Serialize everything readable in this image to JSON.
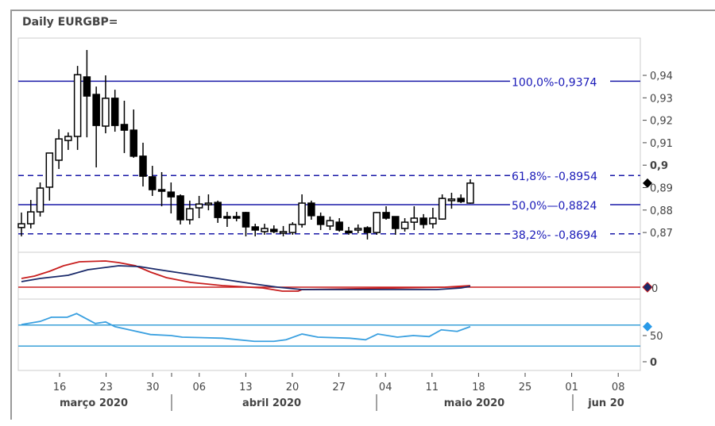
{
  "title": "Daily EURGBP=",
  "colors": {
    "fib": "#1a1aa8",
    "fib_text": "#1a1ab8",
    "candle": "#000000",
    "macd": "#c81e1e",
    "signal": "#1a2a6a",
    "rsi": "#3aa0e0",
    "rsi_bands": "#3aa0d8",
    "grid": "#cccccc"
  },
  "chart_data": [
    {
      "type": "candlestick",
      "title": "Daily EURGBP=",
      "ylim": [
        0.864,
        0.956
      ],
      "y_ticks": [
        {
          "v": 0.94,
          "label": "0,94"
        },
        {
          "v": 0.93,
          "label": "0,93"
        },
        {
          "v": 0.92,
          "label": "0,92"
        },
        {
          "v": 0.91,
          "label": "0,91"
        },
        {
          "v": 0.9,
          "label": "0,9",
          "bold": true
        },
        {
          "v": 0.89,
          "label": "0,89"
        },
        {
          "v": 0.88,
          "label": "0,88"
        },
        {
          "v": 0.87,
          "label": "0,87"
        }
      ],
      "fib_levels": [
        {
          "v": 0.9374,
          "label": "100,0%-0,9374",
          "style": "solid"
        },
        {
          "v": 0.8954,
          "label": "61,8%- -0,8954",
          "style": "dashed"
        },
        {
          "v": 0.8824,
          "label": "50,0%—0,8824",
          "style": "solid"
        },
        {
          "v": 0.8694,
          "label": "38,2%- -0,8694",
          "style": "dashed"
        }
      ],
      "last_marker": 0.892,
      "ohlc": [
        [
          0.8722,
          0.8789,
          0.8683,
          0.8739
        ],
        [
          0.8739,
          0.8845,
          0.8718,
          0.8792
        ],
        [
          0.8792,
          0.8923,
          0.8771,
          0.8898
        ],
        [
          0.8902,
          0.9054,
          0.8842,
          0.9054
        ],
        [
          0.9022,
          0.916,
          0.8983,
          0.9117
        ],
        [
          0.911,
          0.9146,
          0.9068,
          0.9128
        ],
        [
          0.9128,
          0.9442,
          0.9068,
          0.9403
        ],
        [
          0.9393,
          0.9513,
          0.9124,
          0.9308
        ],
        [
          0.9315,
          0.935,
          0.899,
          0.9177
        ],
        [
          0.9174,
          0.94,
          0.9142,
          0.9298
        ],
        [
          0.9298,
          0.9336,
          0.9149,
          0.9177
        ],
        [
          0.9181,
          0.9287,
          0.9054,
          0.9156
        ],
        [
          0.9156,
          0.9248,
          0.9033,
          0.904
        ],
        [
          0.904,
          0.91,
          0.8905,
          0.8951
        ],
        [
          0.8948,
          0.8997,
          0.8863,
          0.8891
        ],
        [
          0.8891,
          0.8969,
          0.8817,
          0.8884
        ],
        [
          0.888,
          0.8923,
          0.8785,
          0.8859
        ],
        [
          0.8863,
          0.887,
          0.8736,
          0.8757
        ],
        [
          0.8757,
          0.8842,
          0.8736,
          0.8806
        ],
        [
          0.881,
          0.8863,
          0.8764,
          0.8827
        ],
        [
          0.8831,
          0.887,
          0.8799,
          0.8831
        ],
        [
          0.8834,
          0.8842,
          0.8743,
          0.8767
        ],
        [
          0.8771,
          0.8792,
          0.8725,
          0.8768
        ],
        [
          0.8771,
          0.8792,
          0.875,
          0.8768
        ],
        [
          0.8789,
          0.8792,
          0.8683,
          0.8725
        ],
        [
          0.8725,
          0.8739,
          0.8683,
          0.8711
        ],
        [
          0.8704,
          0.8739,
          0.869,
          0.8718
        ],
        [
          0.8714,
          0.8732,
          0.8697,
          0.8704
        ],
        [
          0.8704,
          0.8729,
          0.8683,
          0.8704
        ],
        [
          0.87,
          0.8746,
          0.869,
          0.8736
        ],
        [
          0.8736,
          0.887,
          0.8722,
          0.8831
        ],
        [
          0.8831,
          0.8842,
          0.8757,
          0.8775
        ],
        [
          0.8771,
          0.8789,
          0.8711,
          0.8736
        ],
        [
          0.8729,
          0.8771,
          0.8711,
          0.8753
        ],
        [
          0.8746,
          0.8764,
          0.8704,
          0.8711
        ],
        [
          0.8706,
          0.8725,
          0.869,
          0.8704
        ],
        [
          0.8711,
          0.8736,
          0.8697,
          0.8718
        ],
        [
          0.8721,
          0.8728,
          0.8669,
          0.87
        ],
        [
          0.87,
          0.8792,
          0.869,
          0.8789
        ],
        [
          0.8789,
          0.8817,
          0.8757,
          0.8764
        ],
        [
          0.8771,
          0.8771,
          0.869,
          0.8718
        ],
        [
          0.8718,
          0.8764,
          0.8704,
          0.8746
        ],
        [
          0.8746,
          0.8817,
          0.8711,
          0.8764
        ],
        [
          0.8764,
          0.8782,
          0.8718,
          0.8736
        ],
        [
          0.8739,
          0.881,
          0.8718,
          0.8764
        ],
        [
          0.876,
          0.887,
          0.8757,
          0.8852
        ],
        [
          0.8845,
          0.8877,
          0.8806,
          0.8849
        ],
        [
          0.8852,
          0.887,
          0.8831,
          0.8838
        ],
        [
          0.8831,
          0.8937,
          0.8828,
          0.892
        ]
      ]
    },
    {
      "type": "line",
      "y_ticks": [
        {
          "v": 0,
          "label": "0"
        }
      ],
      "zero_line": 0,
      "series": [
        {
          "key": "macd",
          "points": [
            [
              0,
              1.1
            ],
            [
              1.4,
              1.4
            ],
            [
              3,
              2.0
            ],
            [
              4.5,
              2.7
            ],
            [
              6.2,
              3.2
            ],
            [
              9,
              3.3
            ],
            [
              10.4,
              3.1
            ],
            [
              12.2,
              2.7
            ],
            [
              13.8,
              1.9
            ],
            [
              15.5,
              1.2
            ],
            [
              18.1,
              0.6
            ],
            [
              21.5,
              0.2
            ],
            [
              25.8,
              -0.1
            ],
            [
              27.9,
              -0.5
            ],
            [
              29.6,
              -0.5
            ],
            [
              30,
              -0.3
            ],
            [
              45.3,
              0
            ],
            [
              48,
              0.2
            ]
          ]
        },
        {
          "key": "signal",
          "points": [
            [
              0,
              0.7
            ],
            [
              2,
              1.1
            ],
            [
              5,
              1.5
            ],
            [
              7.1,
              2.2
            ],
            [
              10.4,
              2.7
            ],
            [
              12.6,
              2.6
            ],
            [
              14.7,
              2.2
            ],
            [
              18.1,
              1.6
            ],
            [
              21.5,
              1.0
            ],
            [
              24.9,
              0.4
            ],
            [
              27.4,
              0
            ],
            [
              30,
              -0.3
            ],
            [
              44.4,
              -0.3
            ],
            [
              47,
              -0.1
            ],
            [
              48,
              0.1
            ]
          ]
        }
      ],
      "last_markers": [
        0,
        0
      ]
    },
    {
      "type": "line",
      "ylim": [
        0,
        100
      ],
      "y_ticks": [
        {
          "v": 50,
          "label": "50"
        },
        {
          "v": 0,
          "label": "0"
        }
      ],
      "bands": [
        70,
        30
      ],
      "series": [
        {
          "key": "rsi",
          "points": [
            [
              0,
              71
            ],
            [
              2,
              77
            ],
            [
              3.2,
              85
            ],
            [
              4.9,
              85
            ],
            [
              5.9,
              92
            ],
            [
              7.9,
              73
            ],
            [
              9,
              76
            ],
            [
              10,
              67
            ],
            [
              11.3,
              62
            ],
            [
              13.8,
              52
            ],
            [
              16,
              50
            ],
            [
              17.2,
              47
            ],
            [
              21.5,
              45
            ],
            [
              24.9,
              39
            ],
            [
              27,
              39
            ],
            [
              28.3,
              42
            ],
            [
              30,
              53
            ],
            [
              31.7,
              47
            ],
            [
              35.1,
              45
            ],
            [
              36.8,
              42
            ],
            [
              38.1,
              53
            ],
            [
              40.2,
              47
            ],
            [
              41.9,
              50
            ],
            [
              43.6,
              48
            ],
            [
              44.9,
              61
            ],
            [
              46.6,
              58
            ],
            [
              48,
              67
            ]
          ]
        }
      ],
      "last_marker": 67
    }
  ],
  "x_axis": {
    "day_ticks": [
      {
        "t": 4,
        "label": "16"
      },
      {
        "t": 9,
        "label": "23"
      },
      {
        "t": 14,
        "label": "30"
      },
      {
        "t": 19,
        "label": "06"
      },
      {
        "t": 24,
        "label": "13"
      },
      {
        "t": 29,
        "label": "20"
      },
      {
        "t": 34,
        "label": "27"
      },
      {
        "t": 39,
        "label": "04"
      },
      {
        "t": 44,
        "label": "11"
      },
      {
        "t": 49,
        "label": "18"
      },
      {
        "t": 54,
        "label": "25"
      },
      {
        "t": 59,
        "label": "01"
      },
      {
        "t": 64,
        "label": "08"
      }
    ],
    "months": [
      {
        "label": "março 2020"
      },
      {
        "label": "abril 2020"
      },
      {
        "label": "maio 2020"
      },
      {
        "label": "jun 20"
      }
    ]
  }
}
